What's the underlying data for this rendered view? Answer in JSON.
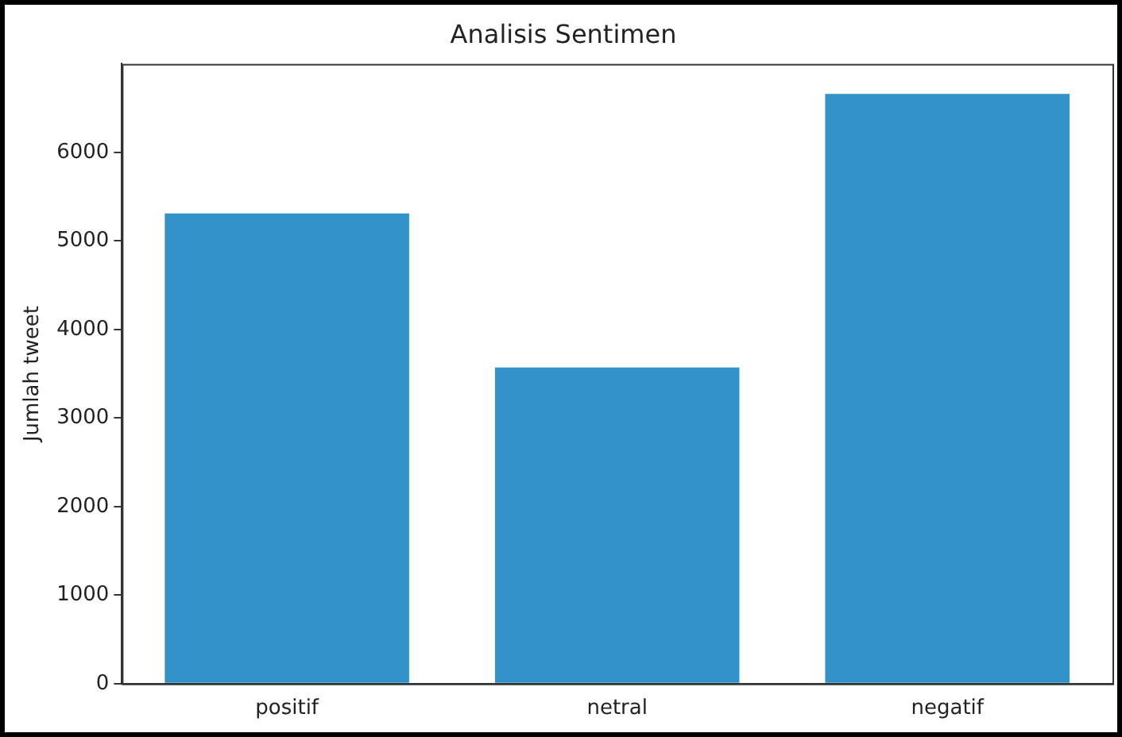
{
  "chart_data": {
    "type": "bar",
    "title": "Analisis Sentimen",
    "ylabel": "Jumlah tweet",
    "categories": [
      "positif",
      "netral",
      "negatif"
    ],
    "values": [
      5310,
      3570,
      6660
    ],
    "color": "#3192c9",
    "ylim": [
      0,
      7000
    ],
    "yticks": [
      0,
      1000,
      2000,
      3000,
      4000,
      5000,
      6000
    ],
    "grid": false,
    "legend": false
  }
}
